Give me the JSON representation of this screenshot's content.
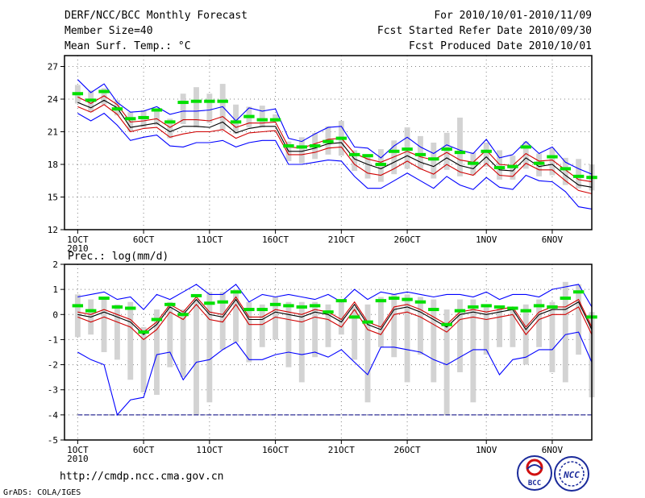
{
  "header": {
    "title": "DERF/NCC/BCC Monthly Forecast",
    "member_size": "Member Size=40",
    "variable": "Mean Surf. Temp.: °C",
    "period": "For 2010/10/01-2010/11/09",
    "fcst_started": "Fcst Started Refer Date 2010/09/30",
    "fcst_produced": "Fcst Produced Date 2010/10/01"
  },
  "footer": {
    "url": "http://cmdp.ncc.cma.gov.cn",
    "credit": "GrADS: COLA/IGES",
    "logo_left_text": "BCC",
    "logo_right_text": "NCC"
  },
  "colors": {
    "box": "#d3d3d3",
    "mean": "#00e000",
    "envelope": "#0000ff",
    "spread": "#d00000",
    "median": "#000000",
    "grid": "#808080",
    "baseline": "#000080"
  },
  "chart_data": [
    {
      "id": "temperature",
      "type": "line",
      "title": "Mean Surf. Temp.: °C",
      "ylim": [
        12,
        28
      ],
      "yticks": [
        12,
        15,
        18,
        21,
        24,
        27
      ],
      "ytick_labels": [
        "12",
        "15",
        "18",
        "21",
        "24",
        "27"
      ],
      "xlim": [
        0,
        40
      ],
      "x_ticks": [
        {
          "x": 1,
          "label": "1OCT",
          "sub": "2010"
        },
        {
          "x": 6,
          "label": "6OCT"
        },
        {
          "x": 11,
          "label": "11OCT"
        },
        {
          "x": 16,
          "label": "16OCT"
        },
        {
          "x": 21,
          "label": "21OCT"
        },
        {
          "x": 26,
          "label": "26OCT"
        },
        {
          "x": 32,
          "label": "1NOV"
        },
        {
          "x": 37,
          "label": "6NOV"
        }
      ],
      "days": [
        1,
        2,
        3,
        4,
        5,
        6,
        7,
        8,
        9,
        10,
        11,
        12,
        13,
        14,
        15,
        16,
        17,
        18,
        19,
        20,
        21,
        22,
        23,
        24,
        25,
        26,
        27,
        28,
        29,
        30,
        31,
        32,
        33,
        34,
        35,
        36,
        37,
        38,
        39,
        40
      ],
      "box_low": [
        23.6,
        22.8,
        23.5,
        22.5,
        21.0,
        21.4,
        21.6,
        20.4,
        21.7,
        21.4,
        21.8,
        21.2,
        20.8,
        21.4,
        21.4,
        21.9,
        18.3,
        18.1,
        18.5,
        18.9,
        18.8,
        17.4,
        16.7,
        16.4,
        17.1,
        17.6,
        17.5,
        16.7,
        17.5,
        16.9,
        17.0,
        17.8,
        16.6,
        16.6,
        17.6,
        16.9,
        17.0,
        16.1,
        15.8,
        15.6
      ],
      "box_high": [
        25.3,
        24.8,
        25.0,
        23.9,
        22.8,
        23.0,
        23.0,
        22.2,
        24.5,
        25.1,
        24.5,
        25.4,
        23.5,
        23.3,
        23.4,
        22.6,
        20.1,
        20.5,
        20.9,
        21.5,
        22.0,
        19.3,
        18.8,
        19.4,
        20.2,
        21.4,
        20.6,
        20.0,
        20.9,
        22.3,
        19.1,
        20.0,
        19.3,
        18.8,
        20.1,
        19.0,
        19.5,
        18.6,
        18.5,
        18.0
      ],
      "mean": [
        24.5,
        23.9,
        24.7,
        23.1,
        22.2,
        22.3,
        23.0,
        21.9,
        23.7,
        23.8,
        23.8,
        23.8,
        21.9,
        22.4,
        22.1,
        22.1,
        19.7,
        19.6,
        19.7,
        20.1,
        20.4,
        18.9,
        18.8,
        18.0,
        19.2,
        19.4,
        18.9,
        18.5,
        19.4,
        19.1,
        18.1,
        19.2,
        17.7,
        17.8,
        19.6,
        18.1,
        18.7,
        17.6,
        16.9,
        16.8
      ],
      "median": [
        23.7,
        23.2,
        23.9,
        23.2,
        21.4,
        21.6,
        21.8,
        21.0,
        21.5,
        21.5,
        21.4,
        21.9,
        20.9,
        21.3,
        21.5,
        21.5,
        19.2,
        19.2,
        19.5,
        19.9,
        20.0,
        18.5,
        18.0,
        17.6,
        18.2,
        18.8,
        18.2,
        17.8,
        18.6,
        17.9,
        17.6,
        18.7,
        17.5,
        17.4,
        18.6,
        17.8,
        18.0,
        17.0,
        16.1,
        15.9
      ],
      "min": [
        22.7,
        22.0,
        22.7,
        21.6,
        20.2,
        20.5,
        20.7,
        19.7,
        19.6,
        20.0,
        20.0,
        20.2,
        19.6,
        20.0,
        20.2,
        20.2,
        18.0,
        18.0,
        18.2,
        18.4,
        18.3,
        16.9,
        15.8,
        15.8,
        16.5,
        17.2,
        16.5,
        15.8,
        16.9,
        16.1,
        15.7,
        16.8,
        15.9,
        15.7,
        17.0,
        16.5,
        16.4,
        15.5,
        14.1,
        13.9
      ],
      "max": [
        25.8,
        24.6,
        25.4,
        23.7,
        22.8,
        22.9,
        23.3,
        22.6,
        22.9,
        22.9,
        23.0,
        23.3,
        22.0,
        23.2,
        22.9,
        23.1,
        20.4,
        20.1,
        20.8,
        21.4,
        21.5,
        19.6,
        19.5,
        18.6,
        19.7,
        20.5,
        19.6,
        19.0,
        19.8,
        19.3,
        19.0,
        20.3,
        18.6,
        18.9,
        20.1,
        19.0,
        19.6,
        18.2,
        17.6,
        17.1
      ],
      "band_low": [
        23.3,
        22.8,
        23.5,
        22.6,
        21.0,
        21.3,
        21.4,
        20.5,
        20.8,
        21.0,
        21.0,
        21.2,
        20.4,
        20.9,
        21.0,
        21.1,
        18.9,
        18.9,
        19.1,
        19.5,
        19.6,
        18.0,
        17.2,
        17.0,
        17.6,
        18.3,
        17.6,
        17.1,
        18.0,
        17.3,
        17.0,
        18.1,
        17.0,
        16.9,
        18.1,
        17.5,
        17.5,
        16.5,
        15.6,
        15.3
      ],
      "band_high": [
        24.2,
        23.6,
        24.3,
        23.5,
        21.9,
        22.0,
        22.2,
        21.4,
        22.1,
        22.1,
        22.0,
        22.4,
        21.4,
        21.8,
        21.8,
        21.9,
        19.6,
        19.5,
        19.9,
        20.3,
        20.4,
        19.0,
        18.5,
        18.2,
        18.7,
        19.2,
        18.7,
        18.4,
        19.1,
        18.4,
        18.2,
        19.3,
        18.0,
        17.9,
        19.0,
        18.3,
        18.4,
        17.5,
        16.6,
        16.4
      ]
    },
    {
      "id": "precipitation",
      "type": "line",
      "title": "Prec.: log(mm/d)",
      "ylim": [
        -5,
        2
      ],
      "yticks": [
        -5,
        -4,
        -3,
        -2,
        -1,
        0,
        1,
        2
      ],
      "ytick_labels": [
        "-5",
        "-4",
        "-3",
        "-2",
        "-1",
        "0",
        "1",
        "2"
      ],
      "xlim": [
        0,
        40
      ],
      "x_ticks": [
        {
          "x": 1,
          "label": "1OCT",
          "sub": "2010"
        },
        {
          "x": 6,
          "label": "6OCT"
        },
        {
          "x": 11,
          "label": "11OCT"
        },
        {
          "x": 16,
          "label": "16OCT"
        },
        {
          "x": 21,
          "label": "21OCT"
        },
        {
          "x": 26,
          "label": "26OCT"
        },
        {
          "x": 32,
          "label": "1NOV"
        },
        {
          "x": 37,
          "label": "6NOV"
        }
      ],
      "baseline": -4,
      "days": [
        1,
        2,
        3,
        4,
        5,
        6,
        7,
        8,
        9,
        10,
        11,
        12,
        13,
        14,
        15,
        16,
        17,
        18,
        19,
        20,
        21,
        22,
        23,
        24,
        25,
        26,
        27,
        28,
        29,
        30,
        31,
        32,
        33,
        34,
        35,
        36,
        37,
        38,
        39,
        40
      ],
      "box_low": [
        -0.9,
        -0.8,
        -1.5,
        -1.8,
        -2.6,
        -3.1,
        -3.2,
        -2.1,
        -2.5,
        -4.0,
        -3.5,
        -1.4,
        -1.1,
        -1.9,
        -1.3,
        -1.0,
        -2.1,
        -2.7,
        -1.7,
        -1.3,
        -0.8,
        -1.8,
        -3.5,
        -1.3,
        -1.7,
        -2.7,
        -1.6,
        -2.7,
        -4.0,
        -2.3,
        -3.5,
        -1.6,
        -1.3,
        -1.3,
        -2.0,
        -1.3,
        -2.3,
        -2.7,
        -1.6,
        -3.3
      ],
      "box_high": [
        0.8,
        0.6,
        0.7,
        0.4,
        0.5,
        -0.5,
        0.2,
        0.5,
        0.2,
        0.6,
        0.9,
        0.9,
        1.0,
        0.5,
        0.4,
        0.7,
        0.5,
        0.5,
        0.5,
        0.4,
        0.5,
        0.3,
        0.4,
        0.7,
        0.8,
        0.8,
        0.7,
        0.6,
        0.2,
        0.6,
        0.6,
        0.3,
        0.3,
        0.3,
        0.4,
        0.6,
        0.5,
        1.3,
        1.2,
        0.1
      ],
      "mean": [
        0.35,
        0.15,
        0.65,
        0.3,
        0.25,
        -0.7,
        -0.2,
        0.4,
        0.0,
        0.75,
        0.45,
        0.5,
        0.9,
        0.2,
        0.2,
        0.4,
        0.35,
        0.3,
        0.35,
        0.1,
        0.55,
        -0.1,
        -0.3,
        0.55,
        0.65,
        0.6,
        0.5,
        0.2,
        -0.4,
        0.15,
        0.3,
        0.35,
        0.3,
        0.25,
        0.15,
        0.35,
        0.3,
        0.65,
        0.9,
        -0.1
      ],
      "median": [
        0.0,
        -0.1,
        0.1,
        -0.1,
        -0.3,
        -0.8,
        -0.4,
        0.3,
        0.0,
        0.6,
        0.0,
        -0.1,
        0.6,
        -0.2,
        -0.2,
        0.1,
        0.0,
        -0.1,
        0.1,
        0.0,
        -0.3,
        0.4,
        -0.4,
        -0.6,
        0.2,
        0.3,
        0.1,
        -0.2,
        -0.5,
        0.0,
        0.1,
        0.0,
        0.1,
        0.2,
        -0.6,
        0.0,
        0.2,
        0.2,
        0.5,
        -0.6
      ],
      "min": [
        -1.5,
        -1.8,
        -2.0,
        -4.0,
        -3.4,
        -3.3,
        -1.6,
        -1.5,
        -2.6,
        -1.9,
        -1.8,
        -1.4,
        -1.1,
        -1.8,
        -1.8,
        -1.6,
        -1.5,
        -1.6,
        -1.5,
        -1.7,
        -1.4,
        -1.9,
        -2.4,
        -1.3,
        -1.3,
        -1.4,
        -1.5,
        -1.8,
        -2.0,
        -1.7,
        -1.4,
        -1.4,
        -2.4,
        -1.8,
        -1.7,
        -1.4,
        -1.4,
        -0.8,
        -0.7,
        -1.9
      ],
      "max": [
        0.7,
        0.8,
        0.9,
        0.6,
        0.7,
        0.2,
        0.8,
        0.6,
        0.9,
        1.2,
        0.8,
        0.8,
        1.2,
        0.5,
        0.8,
        0.7,
        0.8,
        0.7,
        0.6,
        0.8,
        0.5,
        1.0,
        0.6,
        0.9,
        0.8,
        0.9,
        0.8,
        0.7,
        0.8,
        0.8,
        0.7,
        0.9,
        0.6,
        0.8,
        0.8,
        0.7,
        1.0,
        1.1,
        1.2,
        0.3
      ],
      "band_low": [
        -0.1,
        -0.3,
        -0.1,
        -0.3,
        -0.5,
        -1.0,
        -0.6,
        0.1,
        -0.2,
        0.4,
        -0.2,
        -0.3,
        0.4,
        -0.4,
        -0.4,
        -0.1,
        -0.2,
        -0.3,
        -0.1,
        -0.2,
        -0.5,
        0.2,
        -0.6,
        -0.8,
        0.0,
        0.1,
        -0.1,
        -0.4,
        -0.7,
        -0.2,
        -0.1,
        -0.2,
        -0.1,
        0.0,
        -0.8,
        -0.2,
        0.0,
        0.0,
        0.3,
        -0.8
      ],
      "band_high": [
        0.1,
        0.0,
        0.2,
        0.0,
        -0.2,
        -0.7,
        -0.3,
        0.4,
        0.1,
        0.7,
        0.1,
        0.0,
        0.7,
        -0.1,
        -0.1,
        0.2,
        0.1,
        0.0,
        0.2,
        0.1,
        -0.2,
        0.5,
        -0.3,
        -0.5,
        0.3,
        0.4,
        0.2,
        -0.1,
        -0.4,
        0.1,
        0.2,
        0.1,
        0.2,
        0.3,
        -0.5,
        0.1,
        0.3,
        0.3,
        0.6,
        -0.5
      ]
    }
  ]
}
